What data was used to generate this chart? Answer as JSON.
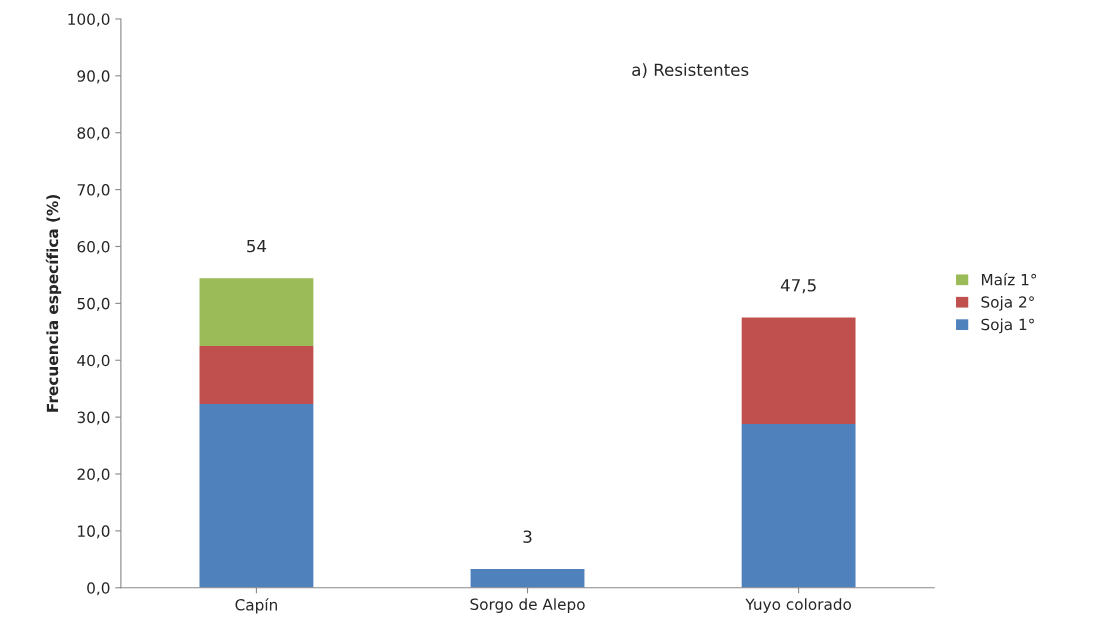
{
  "chart_data": {
    "type": "bar",
    "stacked": true,
    "ylabel": "Frecuencia específica (%)",
    "categories": [
      "Capín",
      "Sorgo de Alepo",
      "Yuyo colorado"
    ],
    "series": [
      {
        "name": "Soja 1°",
        "color": "#4f81bd",
        "values": [
          32.3,
          3.3,
          28.8
        ]
      },
      {
        "name": "Soja 2°",
        "color": "#c0504d",
        "values": [
          10.2,
          null,
          18.7
        ]
      },
      {
        "name": "Maíz 1°",
        "color": "#9bbb59",
        "values": [
          11.9,
          null,
          null
        ]
      }
    ],
    "totals": [
      "54",
      "3",
      "47,5"
    ],
    "annotations": [
      "a) Resistentes"
    ],
    "ylim": [
      0,
      100
    ],
    "yticks": [
      {
        "value": 0,
        "label": "0,0"
      },
      {
        "value": 10,
        "label": "10,0"
      },
      {
        "value": 20,
        "label": "20,0"
      },
      {
        "value": 30,
        "label": "30,0"
      },
      {
        "value": 40,
        "label": "40,0"
      },
      {
        "value": 50,
        "label": "50,0"
      },
      {
        "value": 60,
        "label": "60,0"
      },
      {
        "value": 70,
        "label": "70,0"
      },
      {
        "value": 80,
        "label": "80,0"
      },
      {
        "value": 90,
        "label": "90,0"
      },
      {
        "value": 100,
        "label": "100,0"
      }
    ],
    "grid": false,
    "legend": "right"
  }
}
